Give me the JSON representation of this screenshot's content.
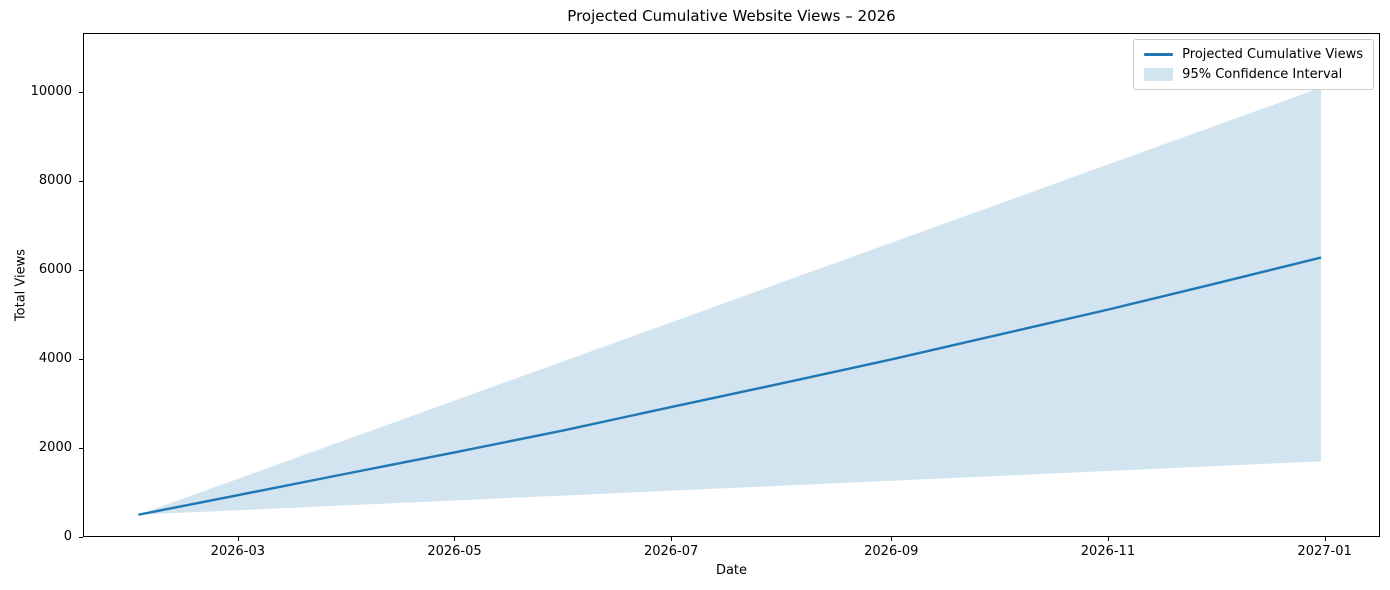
{
  "chart_data": {
    "type": "line",
    "title": "Projected Cumulative Website Views – 2026",
    "xlabel": "Date",
    "ylabel": "Total Views",
    "grid": false,
    "legend": {
      "position": "upper right",
      "series_label": "Projected Cumulative Views",
      "band_label": "95% Confidence Interval"
    },
    "x_tick_labels": [
      "2026-03",
      "2026-05",
      "2026-07",
      "2026-09",
      "2026-11",
      "2027-01"
    ],
    "x_tick_days": [
      28,
      89,
      150,
      212,
      273,
      334
    ],
    "y_ticks": [
      0,
      2000,
      4000,
      6000,
      8000,
      10000
    ],
    "ylim": [
      0,
      11326
    ],
    "xlim_days": [
      -15.6,
      349.6
    ],
    "dates": [
      "2026-02-01",
      "2026-03-01",
      "2026-04-01",
      "2026-05-01",
      "2026-06-01",
      "2026-07-01",
      "2026-08-01",
      "2026-09-01",
      "2026-10-01",
      "2026-11-01",
      "2026-12-01",
      "2026-12-31"
    ],
    "day_offsets": [
      0,
      28,
      59,
      89,
      120,
      150,
      181,
      212,
      242,
      273,
      303,
      333
    ],
    "series": [
      {
        "name": "Projected Cumulative Views",
        "role": "mean",
        "values": [
          500,
          940,
          1430,
          1900,
          2400,
          2920,
          3450,
          3990,
          4540,
          5110,
          5690,
          6280
        ]
      },
      {
        "name": "95% CI upper",
        "role": "band-upper",
        "values": [
          500,
          1307,
          2201,
          3066,
          3959,
          4824,
          5718,
          6612,
          7477,
          8370,
          9235,
          10100
        ]
      },
      {
        "name": "95% CI lower",
        "role": "band-lower",
        "values": [
          500,
          601,
          713,
          821,
          933,
          1041,
          1152,
          1264,
          1372,
          1484,
          1592,
          1700
        ]
      }
    ],
    "colors": {
      "line": "#1f77b4",
      "band": "#d2e4f0",
      "legend_border": "#cccccc",
      "axis": "#000000"
    }
  }
}
